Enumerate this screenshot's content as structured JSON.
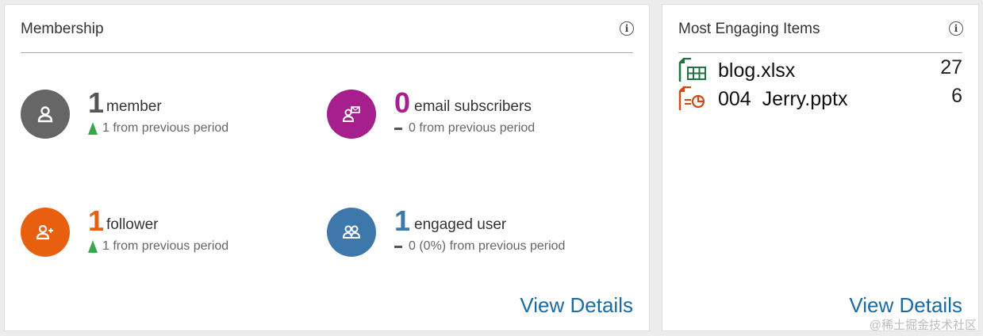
{
  "membership": {
    "title": "Membership",
    "view_details": "View Details",
    "stats": [
      {
        "value": "1",
        "label": "member",
        "change": "1 from previous period",
        "trend": "up",
        "color": "#666666",
        "icon": "user-icon"
      },
      {
        "value": "0",
        "label": "email subscribers",
        "change": "0 from previous period",
        "trend": "none",
        "color": "#a51f8d",
        "icon": "email-user-icon"
      },
      {
        "value": "1",
        "label": "follower",
        "change": "1 from previous period",
        "trend": "up",
        "color": "#e8600f",
        "icon": "add-user-icon"
      },
      {
        "value": "1",
        "label": "engaged user",
        "change": "0 (0%) from previous period",
        "trend": "none",
        "color": "#3e78aa",
        "icon": "users-icon"
      }
    ]
  },
  "engaging": {
    "title": "Most Engaging Items",
    "view_details": "View Details",
    "items": [
      {
        "name": "blog.xlsx",
        "count": "27",
        "icon": "excel-file-icon"
      },
      {
        "name": "004  Jerry.pptx",
        "count": "6",
        "icon": "powerpoint-file-icon"
      }
    ]
  },
  "watermark": "@稀土掘金技术社区"
}
